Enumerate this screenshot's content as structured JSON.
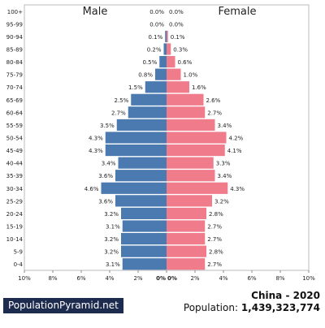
{
  "chart_data": {
    "type": "bar",
    "orientation": "horizontal",
    "subtype": "population-pyramid",
    "categories": [
      "0-4",
      "5-9",
      "10-14",
      "15-19",
      "20-24",
      "25-29",
      "30-34",
      "35-39",
      "40-44",
      "45-49",
      "50-54",
      "55-59",
      "60-64",
      "65-69",
      "70-74",
      "75-79",
      "80-84",
      "85-89",
      "90-94",
      "95-99",
      "100+"
    ],
    "series": [
      {
        "name": "Male",
        "color": "#4a7ab0",
        "values": [
          3.1,
          3.2,
          3.2,
          3.1,
          3.2,
          3.6,
          4.6,
          3.6,
          3.4,
          4.3,
          4.3,
          3.5,
          2.7,
          2.5,
          1.5,
          0.8,
          0.5,
          0.2,
          0.1,
          0.0,
          0.0
        ],
        "labels": [
          "3.1%",
          "3.2%",
          "3.2%",
          "3.1%",
          "3.2%",
          "3.6%",
          "4.6%",
          "3.6%",
          "3.4%",
          "4.3%",
          "4.3%",
          "3.5%",
          "2.7%",
          "2.5%",
          "1.5%",
          "0.8%",
          "0.5%",
          "0.2%",
          "0.1%",
          "0.0%",
          "0.0%"
        ]
      },
      {
        "name": "Female",
        "color": "#f07b8a",
        "values": [
          2.7,
          2.8,
          2.7,
          2.7,
          2.8,
          3.2,
          4.3,
          3.4,
          3.3,
          4.1,
          4.2,
          3.4,
          2.7,
          2.6,
          1.6,
          1.0,
          0.6,
          0.3,
          0.1,
          0.0,
          0.0
        ],
        "labels": [
          "2.7%",
          "2.8%",
          "2.7%",
          "2.7%",
          "2.8%",
          "3.2%",
          "4.3%",
          "3.4%",
          "3.3%",
          "4.1%",
          "4.2%",
          "3.4%",
          "2.7%",
          "2.6%",
          "1.6%",
          "1.0%",
          "0.6%",
          "0.3%",
          "0.1%",
          "0.0%",
          "0.0%"
        ]
      }
    ],
    "x_ticks": [
      "10%",
      "8%",
      "6%",
      "4%",
      "2%",
      "0%",
      "0%",
      "2%",
      "4%",
      "6%",
      "8%",
      "10%"
    ],
    "xlim": [
      0,
      10
    ],
    "grid": true
  },
  "footer": {
    "brand": "PopulationPyramid.net",
    "country_year": "China - 2020",
    "population_label": "Population:",
    "population_value": "1,439,323,774"
  }
}
